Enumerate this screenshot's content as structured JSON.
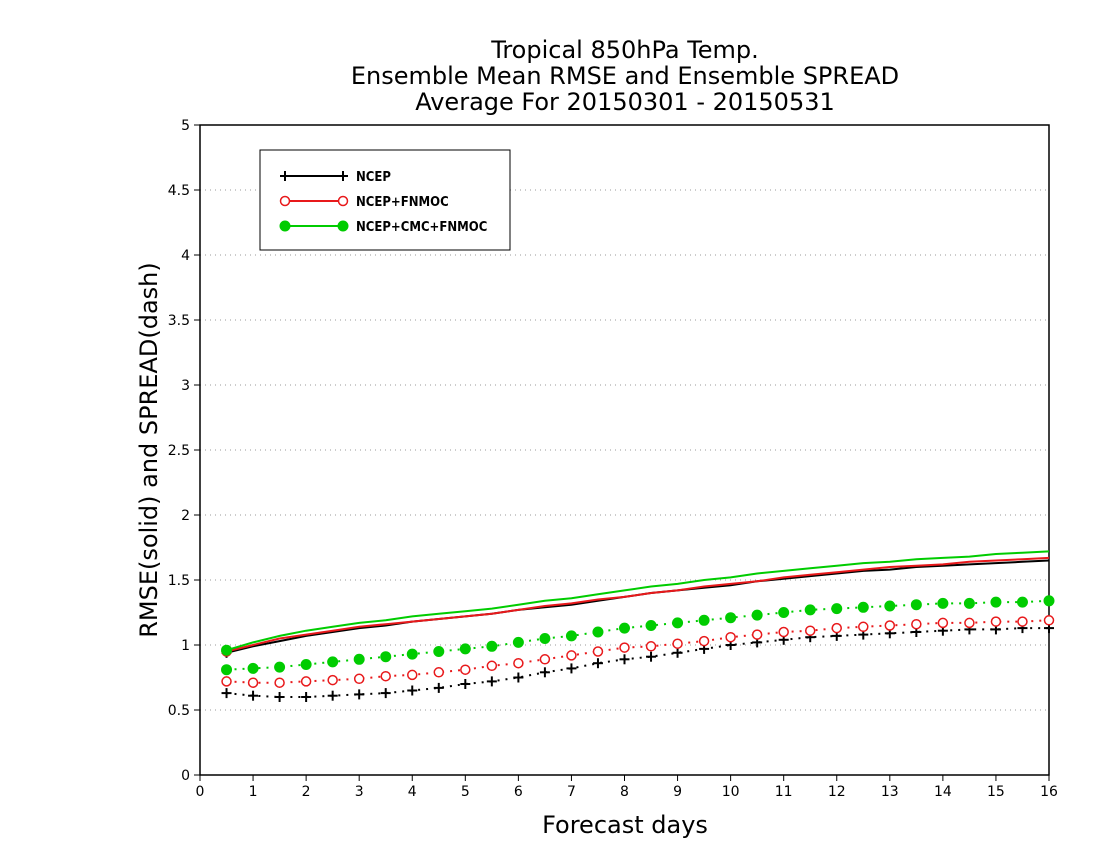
{
  "chart_data": {
    "type": "line",
    "title": [
      "Tropical 850hPa Temp.",
      "Ensemble Mean RMSE and Ensemble SPREAD",
      "Average For 20150301 - 20150531"
    ],
    "xlabel": "Forecast days",
    "ylabel": "RMSE(solid) and SPREAD(dash)",
    "xlim": [
      0,
      16
    ],
    "ylim": [
      0,
      5
    ],
    "xticks": [
      "0",
      "1",
      "2",
      "3",
      "4",
      "5",
      "6",
      "7",
      "8",
      "9",
      "10",
      "11",
      "12",
      "13",
      "14",
      "15",
      "16"
    ],
    "yticks": [
      "0",
      "0.5",
      "1",
      "1.5",
      "2",
      "2.5",
      "3",
      "3.5",
      "4",
      "4.5",
      "5"
    ],
    "grid": "horizontal dotted",
    "legend_position": "top-left",
    "x": [
      0.5,
      1,
      1.5,
      2,
      2.5,
      3,
      3.5,
      4,
      4.5,
      5,
      5.5,
      6,
      6.5,
      7,
      7.5,
      8,
      8.5,
      9,
      9.5,
      10,
      10.5,
      11,
      11.5,
      12,
      12.5,
      13,
      13.5,
      14,
      14.5,
      15,
      15.5,
      16
    ],
    "series": [
      {
        "name": "NCEP",
        "color": "#000000",
        "marker": "plus",
        "rmse": [
          0.94,
          0.99,
          1.03,
          1.07,
          1.1,
          1.13,
          1.15,
          1.18,
          1.2,
          1.22,
          1.24,
          1.27,
          1.29,
          1.31,
          1.34,
          1.37,
          1.4,
          1.42,
          1.44,
          1.46,
          1.49,
          1.51,
          1.53,
          1.55,
          1.57,
          1.58,
          1.6,
          1.61,
          1.62,
          1.63,
          1.64,
          1.65
        ],
        "spread": [
          0.63,
          0.61,
          0.6,
          0.6,
          0.61,
          0.62,
          0.63,
          0.65,
          0.67,
          0.7,
          0.72,
          0.75,
          0.79,
          0.82,
          0.86,
          0.89,
          0.91,
          0.94,
          0.97,
          1.0,
          1.02,
          1.04,
          1.06,
          1.07,
          1.08,
          1.09,
          1.1,
          1.11,
          1.12,
          1.12,
          1.13,
          1.13
        ]
      },
      {
        "name": "NCEP+FNMOC",
        "color": "#e8191b",
        "marker": "open-circle",
        "rmse": [
          0.95,
          1.0,
          1.05,
          1.08,
          1.11,
          1.14,
          1.16,
          1.18,
          1.2,
          1.22,
          1.24,
          1.27,
          1.3,
          1.32,
          1.35,
          1.37,
          1.4,
          1.42,
          1.45,
          1.47,
          1.49,
          1.52,
          1.54,
          1.56,
          1.58,
          1.6,
          1.61,
          1.62,
          1.64,
          1.65,
          1.66,
          1.67
        ],
        "spread": [
          0.72,
          0.71,
          0.71,
          0.72,
          0.73,
          0.74,
          0.76,
          0.77,
          0.79,
          0.81,
          0.84,
          0.86,
          0.89,
          0.92,
          0.95,
          0.98,
          0.99,
          1.01,
          1.03,
          1.06,
          1.08,
          1.1,
          1.11,
          1.13,
          1.14,
          1.15,
          1.16,
          1.17,
          1.17,
          1.18,
          1.18,
          1.19
        ]
      },
      {
        "name": "NCEP+CMC+FNMOC",
        "color": "#00cc00",
        "marker": "filled-circle",
        "rmse": [
          0.96,
          1.02,
          1.07,
          1.11,
          1.14,
          1.17,
          1.19,
          1.22,
          1.24,
          1.26,
          1.28,
          1.31,
          1.34,
          1.36,
          1.39,
          1.42,
          1.45,
          1.47,
          1.5,
          1.52,
          1.55,
          1.57,
          1.59,
          1.61,
          1.63,
          1.64,
          1.66,
          1.67,
          1.68,
          1.7,
          1.71,
          1.72
        ],
        "spread": [
          0.81,
          0.82,
          0.83,
          0.85,
          0.87,
          0.89,
          0.91,
          0.93,
          0.95,
          0.97,
          0.99,
          1.02,
          1.05,
          1.07,
          1.1,
          1.13,
          1.15,
          1.17,
          1.19,
          1.21,
          1.23,
          1.25,
          1.27,
          1.28,
          1.29,
          1.3,
          1.31,
          1.32,
          1.32,
          1.33,
          1.33,
          1.34
        ]
      }
    ]
  }
}
